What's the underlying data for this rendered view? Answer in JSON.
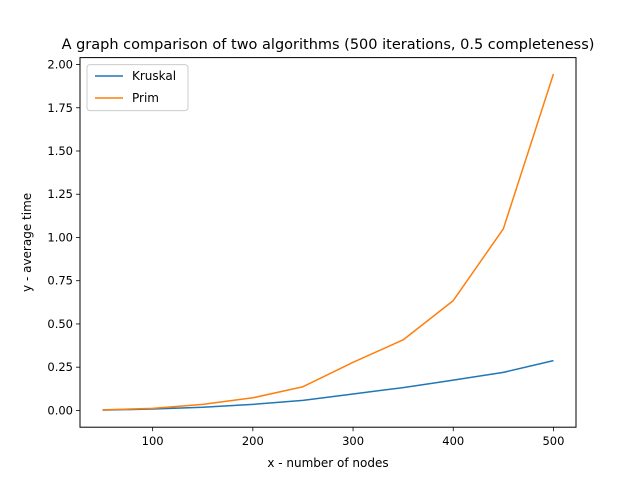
{
  "chart_data": {
    "type": "line",
    "title": "A graph comparison of two algorithms (500 iterations, 0.5 completeness)",
    "xlabel": "x - number of nodes",
    "ylabel": "y - average time",
    "x": [
      50,
      100,
      150,
      200,
      250,
      300,
      350,
      400,
      450,
      500
    ],
    "xlim": [
      27.5,
      522.5
    ],
    "ylim": [
      -0.097,
      2.04
    ],
    "xticks": [
      100,
      200,
      300,
      400,
      500
    ],
    "xtick_labels": [
      "100",
      "200",
      "300",
      "400",
      "500"
    ],
    "yticks": [
      0.0,
      0.25,
      0.5,
      0.75,
      1.0,
      1.25,
      1.5,
      1.75,
      2.0
    ],
    "ytick_labels": [
      "0.00",
      "0.25",
      "0.50",
      "0.75",
      "1.00",
      "1.25",
      "1.50",
      "1.75",
      "2.00"
    ],
    "grid": false,
    "legend_position": "top-left",
    "series": [
      {
        "name": "Kruskal",
        "color": "#1f77b4",
        "values": [
          0.002,
          0.008,
          0.018,
          0.035,
          0.058,
          0.095,
          0.132,
          0.175,
          0.22,
          0.288
        ]
      },
      {
        "name": "Prim",
        "color": "#ff7f0e",
        "values": [
          0.003,
          0.012,
          0.035,
          0.073,
          0.137,
          0.278,
          0.408,
          0.635,
          1.05,
          1.945
        ]
      }
    ]
  }
}
